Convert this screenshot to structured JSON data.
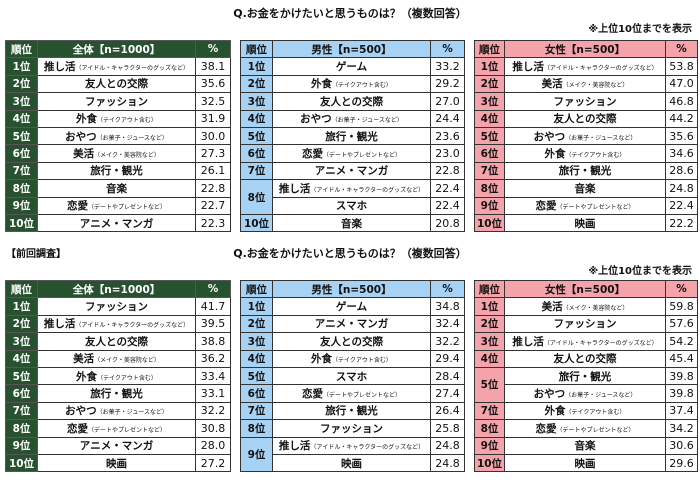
{
  "current": {
    "title": "Q.お金をかけたいと思うものは？（複数回答）",
    "note": "※上位10位までを表示",
    "tables": [
      {
        "theme": "green",
        "headers": [
          "順位",
          "全体【n=1000】",
          "%"
        ],
        "rows": [
          {
            "rank": "1位",
            "items": [
              {
                "main": "推し活",
                "note": "（アイドル・キャラクターのグッズなど）",
                "pct": "38.1"
              }
            ]
          },
          {
            "rank": "2位",
            "items": [
              {
                "main": "友人との交際",
                "note": "",
                "pct": "35.6"
              }
            ]
          },
          {
            "rank": "3位",
            "items": [
              {
                "main": "ファッション",
                "note": "",
                "pct": "32.5"
              }
            ]
          },
          {
            "rank": "4位",
            "items": [
              {
                "main": "外食",
                "note": "（テイクアウト含む）",
                "pct": "31.9"
              }
            ]
          },
          {
            "rank": "5位",
            "items": [
              {
                "main": "おやつ",
                "note": "（お菓子・ジュースなど）",
                "pct": "30.0"
              }
            ]
          },
          {
            "rank": "6位",
            "items": [
              {
                "main": "美活",
                "note": "（メイク・美容院など）",
                "pct": "27.3"
              }
            ]
          },
          {
            "rank": "7位",
            "items": [
              {
                "main": "旅行・観光",
                "note": "",
                "pct": "26.1"
              }
            ]
          },
          {
            "rank": "8位",
            "items": [
              {
                "main": "音楽",
                "note": "",
                "pct": "22.8"
              }
            ]
          },
          {
            "rank": "9位",
            "items": [
              {
                "main": "恋愛",
                "note": "（デートやプレゼントなど）",
                "pct": "22.7"
              }
            ]
          },
          {
            "rank": "10位",
            "items": [
              {
                "main": "アニメ・マンガ",
                "note": "",
                "pct": "22.3"
              }
            ]
          }
        ]
      },
      {
        "theme": "blue",
        "headers": [
          "順位",
          "男性【n=500】",
          "%"
        ],
        "rows": [
          {
            "rank": "1位",
            "items": [
              {
                "main": "ゲーム",
                "note": "",
                "pct": "33.2"
              }
            ]
          },
          {
            "rank": "2位",
            "items": [
              {
                "main": "外食",
                "note": "（テイクアウト含む）",
                "pct": "29.2"
              }
            ]
          },
          {
            "rank": "3位",
            "items": [
              {
                "main": "友人との交際",
                "note": "",
                "pct": "27.0"
              }
            ]
          },
          {
            "rank": "4位",
            "items": [
              {
                "main": "おやつ",
                "note": "（お菓子・ジュースなど）",
                "pct": "24.4"
              }
            ]
          },
          {
            "rank": "5位",
            "items": [
              {
                "main": "旅行・観光",
                "note": "",
                "pct": "23.6"
              }
            ]
          },
          {
            "rank": "6位",
            "items": [
              {
                "main": "恋愛",
                "note": "（デートやプレゼントなど）",
                "pct": "23.0"
              }
            ]
          },
          {
            "rank": "7位",
            "items": [
              {
                "main": "アニメ・マンガ",
                "note": "",
                "pct": "22.8"
              }
            ]
          },
          {
            "rank": "8位",
            "items": [
              {
                "main": "推し活",
                "note": "（アイドル・キャラクターのグッズなど）",
                "pct": "22.4"
              },
              {
                "main": "スマホ",
                "note": "",
                "pct": "22.4"
              }
            ]
          },
          {
            "rank": "10位",
            "items": [
              {
                "main": "音楽",
                "note": "",
                "pct": "20.8"
              }
            ]
          }
        ]
      },
      {
        "theme": "pink",
        "headers": [
          "順位",
          "女性【n=500】",
          "%"
        ],
        "rows": [
          {
            "rank": "1位",
            "items": [
              {
                "main": "推し活",
                "note": "（アイドル・キャラクターのグッズなど）",
                "pct": "53.8"
              }
            ]
          },
          {
            "rank": "2位",
            "items": [
              {
                "main": "美活",
                "note": "（メイク・美容院など）",
                "pct": "47.0"
              }
            ]
          },
          {
            "rank": "3位",
            "items": [
              {
                "main": "ファッション",
                "note": "",
                "pct": "46.8"
              }
            ]
          },
          {
            "rank": "4位",
            "items": [
              {
                "main": "友人との交際",
                "note": "",
                "pct": "44.2"
              }
            ]
          },
          {
            "rank": "5位",
            "items": [
              {
                "main": "おやつ",
                "note": "（お菓子・ジュースなど）",
                "pct": "35.6"
              }
            ]
          },
          {
            "rank": "6位",
            "items": [
              {
                "main": "外食",
                "note": "（テイクアウト含む）",
                "pct": "34.6"
              }
            ]
          },
          {
            "rank": "7位",
            "items": [
              {
                "main": "旅行・観光",
                "note": "",
                "pct": "28.6"
              }
            ]
          },
          {
            "rank": "8位",
            "items": [
              {
                "main": "音楽",
                "note": "",
                "pct": "24.8"
              }
            ]
          },
          {
            "rank": "9位",
            "items": [
              {
                "main": "恋愛",
                "note": "（デートやプレゼントなど）",
                "pct": "22.4"
              }
            ]
          },
          {
            "rank": "10位",
            "items": [
              {
                "main": "映画",
                "note": "",
                "pct": "22.2"
              }
            ]
          }
        ]
      }
    ]
  },
  "previous": {
    "label": "【前回調査】",
    "title": "Q.お金をかけたいと思うものは？（複数回答）",
    "note": "※上位10位までを表示",
    "tables": [
      {
        "theme": "green",
        "headers": [
          "順位",
          "全体【n=1000】",
          "%"
        ],
        "rows": [
          {
            "rank": "1位",
            "items": [
              {
                "main": "ファッション",
                "note": "",
                "pct": "41.7"
              }
            ]
          },
          {
            "rank": "2位",
            "items": [
              {
                "main": "推し活",
                "note": "（アイドル・キャラクターのグッズなど）",
                "pct": "39.5"
              }
            ]
          },
          {
            "rank": "3位",
            "items": [
              {
                "main": "友人との交際",
                "note": "",
                "pct": "38.8"
              }
            ]
          },
          {
            "rank": "4位",
            "items": [
              {
                "main": "美活",
                "note": "（メイク・美容院など）",
                "pct": "36.2"
              }
            ]
          },
          {
            "rank": "5位",
            "items": [
              {
                "main": "外食",
                "note": "（テイクアウト含む）",
                "pct": "33.4"
              }
            ]
          },
          {
            "rank": "6位",
            "items": [
              {
                "main": "旅行・観光",
                "note": "",
                "pct": "33.1"
              }
            ]
          },
          {
            "rank": "7位",
            "items": [
              {
                "main": "おやつ",
                "note": "（お菓子・ジュースなど）",
                "pct": "32.2"
              }
            ]
          },
          {
            "rank": "8位",
            "items": [
              {
                "main": "恋愛",
                "note": "（デートやプレゼントなど）",
                "pct": "30.8"
              }
            ]
          },
          {
            "rank": "9位",
            "items": [
              {
                "main": "アニメ・マンガ",
                "note": "",
                "pct": "28.0"
              }
            ]
          },
          {
            "rank": "10位",
            "items": [
              {
                "main": "映画",
                "note": "",
                "pct": "27.2"
              }
            ]
          }
        ]
      },
      {
        "theme": "blue",
        "headers": [
          "順位",
          "男性【n=500】",
          "%"
        ],
        "rows": [
          {
            "rank": "1位",
            "items": [
              {
                "main": "ゲーム",
                "note": "",
                "pct": "34.8"
              }
            ]
          },
          {
            "rank": "2位",
            "items": [
              {
                "main": "アニメ・マンガ",
                "note": "",
                "pct": "32.4"
              }
            ]
          },
          {
            "rank": "3位",
            "items": [
              {
                "main": "友人との交際",
                "note": "",
                "pct": "32.2"
              }
            ]
          },
          {
            "rank": "4位",
            "items": [
              {
                "main": "外食",
                "note": "（テイクアウト含む）",
                "pct": "29.4"
              }
            ]
          },
          {
            "rank": "5位",
            "items": [
              {
                "main": "スマホ",
                "note": "",
                "pct": "28.4"
              }
            ]
          },
          {
            "rank": "6位",
            "items": [
              {
                "main": "恋愛",
                "note": "（デートやプレゼントなど）",
                "pct": "27.4"
              }
            ]
          },
          {
            "rank": "7位",
            "items": [
              {
                "main": "旅行・観光",
                "note": "",
                "pct": "26.4"
              }
            ]
          },
          {
            "rank": "8位",
            "items": [
              {
                "main": "ファッション",
                "note": "",
                "pct": "25.8"
              }
            ]
          },
          {
            "rank": "9位",
            "items": [
              {
                "main": "推し活",
                "note": "（アイドル・キャラクターのグッズなど）",
                "pct": "24.8"
              },
              {
                "main": "映画",
                "note": "",
                "pct": "24.8"
              }
            ]
          }
        ]
      },
      {
        "theme": "pink",
        "headers": [
          "順位",
          "女性【n=500】",
          "%"
        ],
        "rows": [
          {
            "rank": "1位",
            "items": [
              {
                "main": "美活",
                "note": "（メイク・美容院など）",
                "pct": "59.8"
              }
            ]
          },
          {
            "rank": "2位",
            "items": [
              {
                "main": "ファッション",
                "note": "",
                "pct": "57.6"
              }
            ]
          },
          {
            "rank": "3位",
            "items": [
              {
                "main": "推し活",
                "note": "（アイドル・キャラクターのグッズなど）",
                "pct": "54.2"
              }
            ]
          },
          {
            "rank": "4位",
            "items": [
              {
                "main": "友人との交際",
                "note": "",
                "pct": "45.4"
              }
            ]
          },
          {
            "rank": "5位",
            "items": [
              {
                "main": "旅行・観光",
                "note": "",
                "pct": "39.8"
              },
              {
                "main": "おやつ",
                "note": "（お菓子・ジュースなど）",
                "pct": "39.8"
              }
            ]
          },
          {
            "rank": "7位",
            "items": [
              {
                "main": "外食",
                "note": "（テイクアウト含む）",
                "pct": "37.4"
              }
            ]
          },
          {
            "rank": "8位",
            "items": [
              {
                "main": "恋愛",
                "note": "（デートやプレゼントなど）",
                "pct": "34.2"
              }
            ]
          },
          {
            "rank": "9位",
            "items": [
              {
                "main": "音楽",
                "note": "",
                "pct": "30.6"
              }
            ]
          },
          {
            "rank": "10位",
            "items": [
              {
                "main": "映画",
                "note": "",
                "pct": "29.6"
              }
            ]
          }
        ]
      }
    ]
  }
}
